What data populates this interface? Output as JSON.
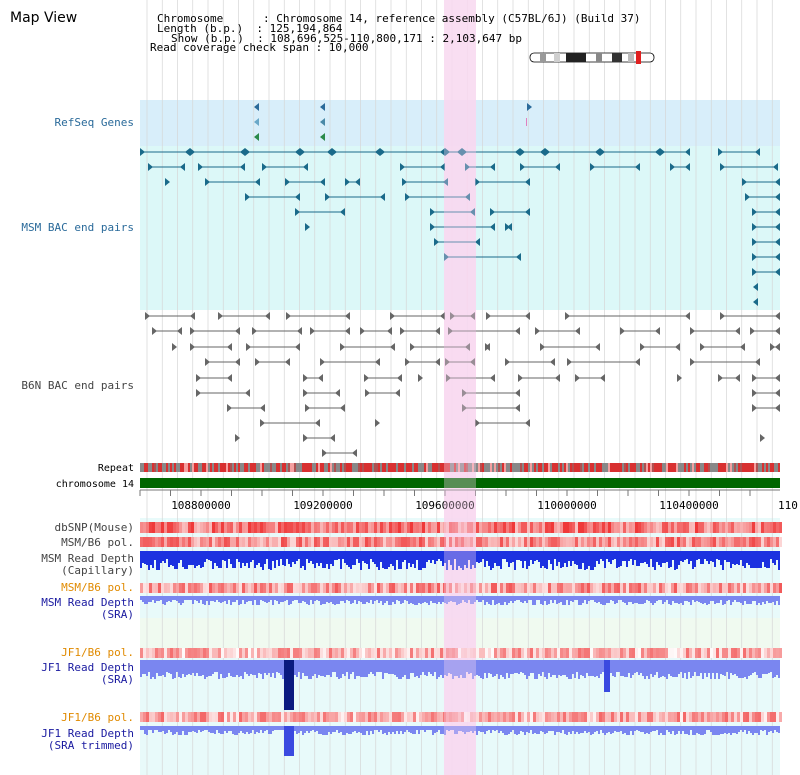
{
  "title": "Map View",
  "header": {
    "chromosome_label": "Chromosome      : Chromosome 14, reference assembly (C57BL/6J) (Build 37)",
    "length_label": "Length (b.p.)  : 125,194,864",
    "show_label": "Show (b.p.)  : 108,696,525-110,800,171 : 2,103,647 bp",
    "coverage_label": "Read coverage check span : 10,000"
  },
  "tracks": {
    "refseq_genes": "RefSeq Genes",
    "msm_bac": "MSM BAC end pairs",
    "b6n_bac": "B6N BAC end pairs",
    "repeat": "Repeat",
    "chromosome": "chromosome 14",
    "dbsnp": "dbSNP(Mouse)",
    "msm_b6_pol_1": "MSM/B6 pol.",
    "msm_depth_cap_1": "MSM Read Depth",
    "msm_depth_cap_2": "(Capillary)",
    "msm_b6_pol_2": "MSM/B6 pol.",
    "msm_depth_sra_1": "MSM Read Depth",
    "msm_depth_sra_2": "(SRA)",
    "jf1_b6_pol_1": "JF1/B6 pol.",
    "jf1_depth_sra_1": "JF1 Read Depth",
    "jf1_depth_sra_2": "(SRA)",
    "jf1_b6_pol_2": "JF1/B6 pol.",
    "jf1_depth_trim_1": "JF1 Read Depth",
    "jf1_depth_trim_2": "(SRA trimmed)"
  },
  "axis": {
    "ticks": [
      "108800000",
      "109200000",
      "109600000",
      "110000000",
      "110400000",
      "110"
    ]
  },
  "colors": {
    "refseq_bg": "#d8eefa",
    "bac_bg": "#dcf8f8",
    "highlight": "#f8d8f0",
    "chromosome_bar": "#006600",
    "bac_msm": "#1a6a8a",
    "bac_b6n": "#555555",
    "depth_capillary": "#1c32e0",
    "depth_sra": "#7a86f0",
    "depth_dark": "#0a1a80",
    "snp_red": "#f03a3a",
    "label_orange": "#e08a00",
    "label_navy": "#1a1aa0",
    "label_teal": "#2a6a9a"
  }
}
